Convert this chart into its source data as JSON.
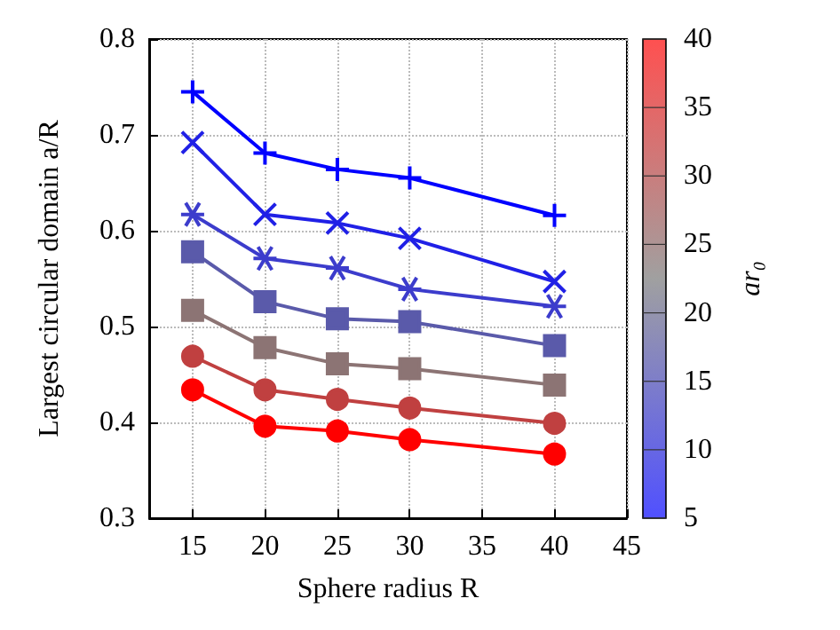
{
  "chart_data": {
    "type": "line",
    "xlabel": "Sphere radius R",
    "ylabel": "Largest circular domain a/R",
    "clabel": "ar₀",
    "x": [
      15,
      20,
      25,
      30,
      40
    ],
    "series": [
      {
        "color": "#0000ff",
        "marker": "plus",
        "values": [
          0.745,
          0.681,
          0.664,
          0.655,
          0.616
        ]
      },
      {
        "color": "#2020e6",
        "marker": "x",
        "values": [
          0.692,
          0.617,
          0.608,
          0.592,
          0.547
        ]
      },
      {
        "color": "#3c3ccc",
        "marker": "cross",
        "values": [
          0.617,
          0.571,
          0.561,
          0.539,
          0.521
        ]
      },
      {
        "color": "#5a5aaa",
        "marker": "square",
        "values": [
          0.578,
          0.526,
          0.508,
          0.505,
          0.48
        ]
      },
      {
        "color": "#8c7474",
        "marker": "square",
        "values": [
          0.517,
          0.478,
          0.461,
          0.456,
          0.439
        ]
      },
      {
        "color": "#c04040",
        "marker": "circle",
        "values": [
          0.469,
          0.434,
          0.424,
          0.415,
          0.399
        ]
      },
      {
        "color": "#ff0000",
        "marker": "circle",
        "values": [
          0.434,
          0.396,
          0.391,
          0.382,
          0.367
        ]
      }
    ],
    "xlim": [
      12,
      45
    ],
    "xticks": [
      15,
      20,
      25,
      30,
      35,
      40,
      45
    ],
    "ylim": [
      0.3,
      0.8
    ],
    "yticks": [
      0.3,
      0.4,
      0.5,
      0.6,
      0.7,
      0.8
    ],
    "clim": [
      5,
      40
    ],
    "cticks": [
      5,
      10,
      15,
      20,
      25,
      30,
      35,
      40
    ],
    "grid": true,
    "line_style": "solid"
  }
}
